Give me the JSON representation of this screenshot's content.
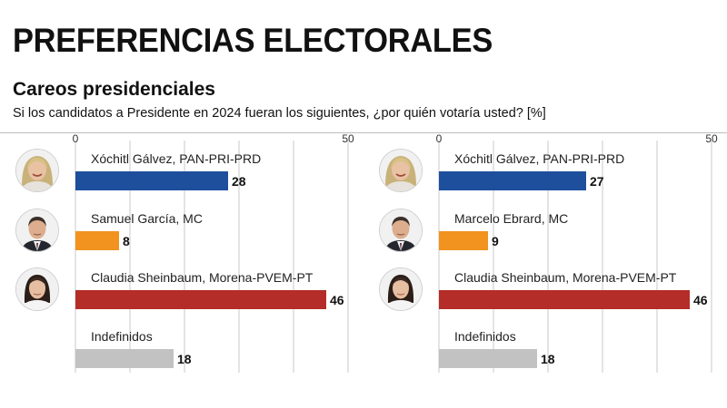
{
  "header": {
    "title": "PREFERENCIAS ELECTORALES",
    "subtitle": "Careos presidenciales",
    "question": "Si los candidatos a Presidente en 2024 fueran los siguientes, ¿por quién votaría usted?  [%]"
  },
  "chart_data": [
    {
      "type": "bar",
      "orientation": "horizontal",
      "xlim": [
        0,
        50
      ],
      "tick_labels": [
        "0",
        "50"
      ],
      "grid": true,
      "categories": [
        "Xóchitl Gálvez, PAN-PRI-PRD",
        "Samuel García, MC",
        "Claudia Sheinbaum, Morena-PVEM-PT",
        "Indefinidos"
      ],
      "values": [
        28,
        8,
        46,
        18
      ],
      "colors": [
        "#1d4f9c",
        "#f2921f",
        "#b42d28",
        "#c2c2c2"
      ],
      "avatars": [
        "woman-smiling-avatar",
        "man-avatar",
        "woman-avatar",
        ""
      ]
    },
    {
      "type": "bar",
      "orientation": "horizontal",
      "xlim": [
        0,
        50
      ],
      "tick_labels": [
        "0",
        "50"
      ],
      "grid": true,
      "categories": [
        "Xóchitl Gálvez, PAN-PRI-PRD",
        "Marcelo Ebrard, MC",
        "Claudia Sheinbaum, Morena-PVEM-PT",
        "Indefinidos"
      ],
      "values": [
        27,
        9,
        46,
        18
      ],
      "colors": [
        "#1d4f9c",
        "#f2921f",
        "#b42d28",
        "#c2c2c2"
      ],
      "avatars": [
        "woman-smiling-avatar",
        "man-avatar",
        "woman-avatar",
        ""
      ]
    }
  ]
}
